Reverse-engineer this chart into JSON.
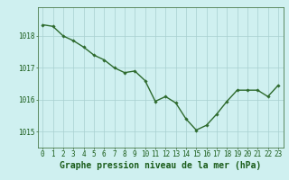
{
  "x": [
    0,
    1,
    2,
    3,
    4,
    5,
    6,
    7,
    8,
    9,
    10,
    11,
    12,
    13,
    14,
    15,
    16,
    17,
    18,
    19,
    20,
    21,
    22,
    23
  ],
  "y": [
    1018.35,
    1018.3,
    1018.0,
    1017.85,
    1017.65,
    1017.4,
    1017.25,
    1017.0,
    1016.85,
    1016.9,
    1016.6,
    1015.95,
    1016.1,
    1015.9,
    1015.4,
    1015.05,
    1015.2,
    1015.55,
    1015.95,
    1016.3,
    1016.3,
    1016.3,
    1016.1,
    1016.45
  ],
  "line_color": "#2d6a2d",
  "marker": "D",
  "marker_size": 1.8,
  "background_color": "#cff0f0",
  "grid_color": "#a8d0d0",
  "axis_label_color": "#1a5c1a",
  "tick_label_color": "#1a5c1a",
  "xlabel": "Graphe pression niveau de la mer (hPa)",
  "ylim": [
    1014.5,
    1018.9
  ],
  "xlim": [
    -0.5,
    23.5
  ],
  "yticks": [
    1015,
    1016,
    1017,
    1018
  ],
  "xticks": [
    0,
    1,
    2,
    3,
    4,
    5,
    6,
    7,
    8,
    9,
    10,
    11,
    12,
    13,
    14,
    15,
    16,
    17,
    18,
    19,
    20,
    21,
    22,
    23
  ],
  "linewidth": 1.0,
  "xlabel_fontsize": 7.0,
  "tick_fontsize": 5.5
}
